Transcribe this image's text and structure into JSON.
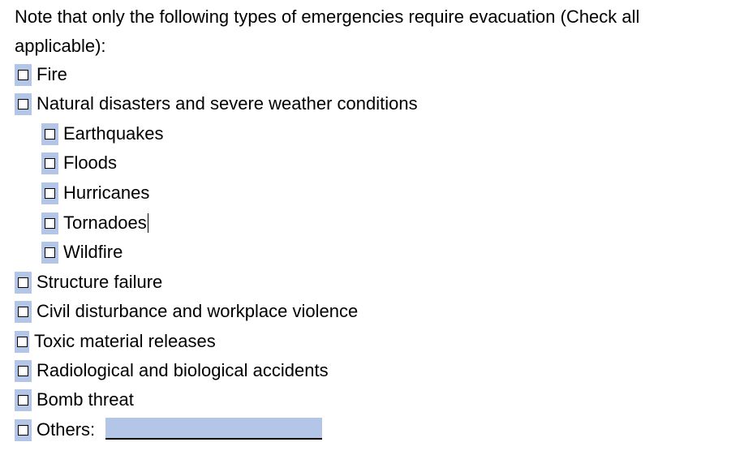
{
  "intro": "Note that only the following types of emergencies require evacuation (Check all applicable):",
  "items": {
    "fire": "Fire",
    "natural": "Natural disasters and severe weather conditions",
    "earthquakes": "Earthquakes",
    "floods": "Floods",
    "hurricanes": "Hurricanes",
    "tornadoes": "Tornadoes",
    "wildfire": "Wildfire",
    "structure": "Structure failure",
    "civil": "Civil disturbance and workplace violence",
    "toxic": "Toxic material releases",
    "radiological": "Radiological and biological accidents",
    "bomb": "Bomb threat",
    "others": "Others:"
  },
  "others_field": {
    "value": ""
  },
  "colors": {
    "field_highlight": "#b4c6e7"
  }
}
